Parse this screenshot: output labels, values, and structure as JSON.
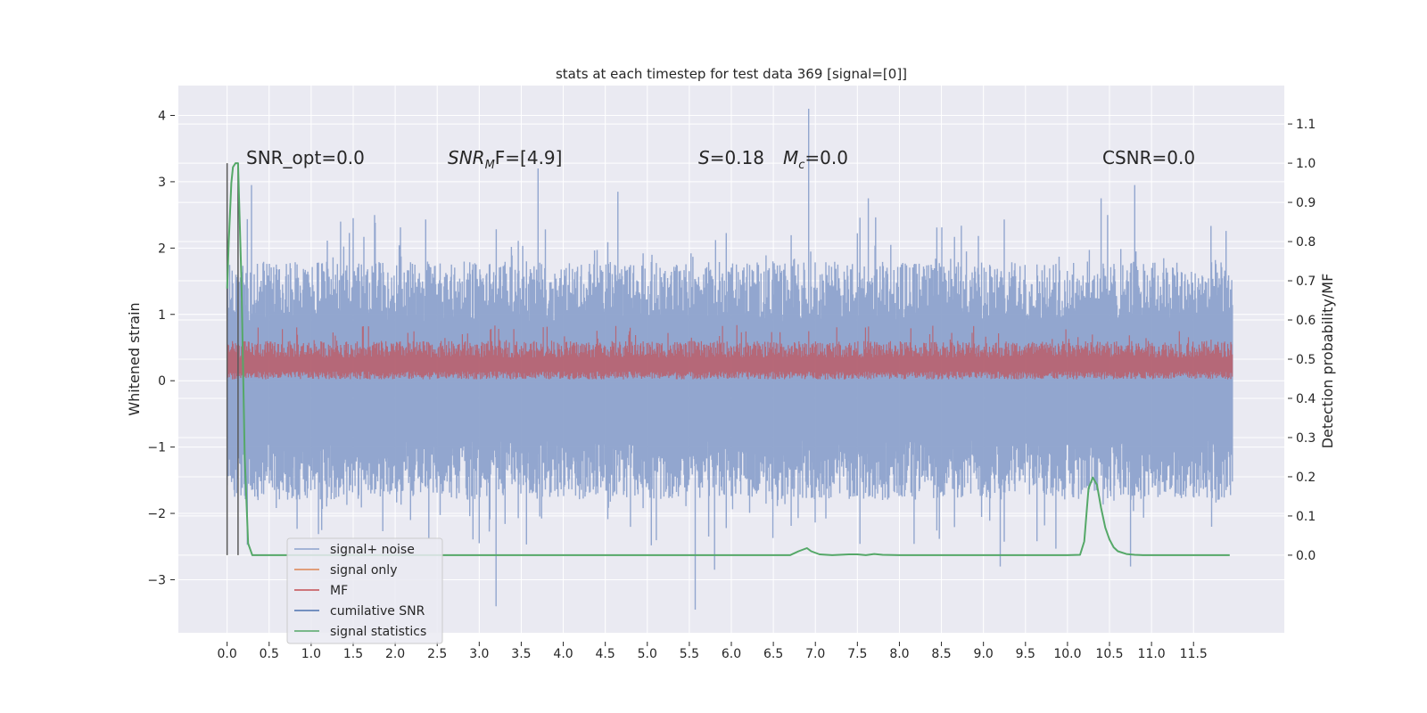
{
  "chart_data": {
    "type": "line",
    "title": "stats at each timestep for test data 369 [signal=[0]]",
    "xlabel": "",
    "ylabel": "Whitened strain",
    "y2label": "Detection probability/MF",
    "xlim": [
      -0.58,
      12.58
    ],
    "ylim": [
      -3.8,
      4.45
    ],
    "y2lim": [
      -0.198,
      1.198
    ],
    "xticks": [
      "0.0",
      "0.5",
      "1.0",
      "1.5",
      "2.0",
      "2.5",
      "3.0",
      "3.5",
      "4.0",
      "4.5",
      "5.0",
      "5.5",
      "6.0",
      "6.5",
      "7.0",
      "7.5",
      "8.0",
      "8.5",
      "9.0",
      "9.5",
      "10.0",
      "10.5",
      "11.0",
      "11.5"
    ],
    "yticks": [
      "4",
      "3",
      "2",
      "1",
      "0",
      "−1",
      "−2",
      "−3"
    ],
    "y2ticks": [
      "1.1",
      "1.0",
      "0.9",
      "0.8",
      "0.7",
      "0.6",
      "0.5",
      "0.4",
      "0.3",
      "0.2",
      "0.1",
      "0.0"
    ],
    "grid": true,
    "legend_position": "lower-left",
    "annotations": {
      "snr_opt": "SNR_opt=0.0",
      "snr_mf_main": "SNR",
      "snr_mf_sub": "M",
      "snr_mf_rest": "F=[4.9]",
      "s_stat": "S",
      "s_rest": "=0.18",
      "mc_main": "M",
      "mc_sub": "c",
      "mc_rest": "=0.0",
      "csnr": "CSNR=0.0"
    },
    "series": [
      {
        "name": "signal+ noise",
        "color": "#8da2cc",
        "description_only": "noise band",
        "band_min": -1.3,
        "band_max": 1.3,
        "spikes": [
          {
            "x": 0.29,
            "y": 2.95
          },
          {
            "x": 1.5,
            "y": 2.45
          },
          {
            "x": 3.0,
            "y": -2.45
          },
          {
            "x": 3.2,
            "y": -3.4
          },
          {
            "x": 3.7,
            "y": 3.2
          },
          {
            "x": 4.65,
            "y": 2.85
          },
          {
            "x": 5.57,
            "y": -3.45
          },
          {
            "x": 5.8,
            "y": -2.85
          },
          {
            "x": 6.92,
            "y": 4.1
          },
          {
            "x": 7.63,
            "y": 2.75
          },
          {
            "x": 9.2,
            "y": -2.8
          },
          {
            "x": 10.4,
            "y": 2.75
          },
          {
            "x": 10.75,
            "y": -2.8
          },
          {
            "x": 10.8,
            "y": 2.95
          }
        ]
      },
      {
        "name": "signal only",
        "color": "#dd8452",
        "values": []
      },
      {
        "name": "MF",
        "color": "#c44e52",
        "description_only": "MF band",
        "band_min": 0.02,
        "band_max": 0.6
      },
      {
        "name": "cumilative SNR",
        "color": "#4c72b0",
        "values": []
      },
      {
        "name": "signal statistics",
        "color": "#55a868",
        "axis": "right",
        "x": [
          0.0,
          0.02,
          0.05,
          0.07,
          0.1,
          0.13,
          0.17,
          0.21,
          0.25,
          0.3,
          0.4,
          0.6,
          1.0,
          2.0,
          3.0,
          4.0,
          5.0,
          6.0,
          6.7,
          6.8,
          6.9,
          6.95,
          7.05,
          7.2,
          7.4,
          7.5,
          7.6,
          7.7,
          7.8,
          8.0,
          8.5,
          9.0,
          9.5,
          10.0,
          10.15,
          10.2,
          10.25,
          10.3,
          10.35,
          10.4,
          10.45,
          10.5,
          10.55,
          10.6,
          10.7,
          10.8,
          10.9,
          11.0,
          11.5,
          11.93
        ],
        "values": [
          0.68,
          0.8,
          0.95,
          0.99,
          1.0,
          1.0,
          0.7,
          0.25,
          0.03,
          0.0,
          0.0,
          0.0,
          0.0,
          0.0,
          0.0,
          0.0,
          0.0,
          0.0,
          0.0,
          0.01,
          0.018,
          0.01,
          0.002,
          0.0,
          0.002,
          0.002,
          0.0,
          0.003,
          0.001,
          0.0,
          0.0,
          0.0,
          0.0,
          0.0,
          0.001,
          0.035,
          0.17,
          0.198,
          0.18,
          0.12,
          0.07,
          0.04,
          0.02,
          0.01,
          0.003,
          0.001,
          0.0,
          0.0,
          0.0,
          0.0
        ]
      }
    ],
    "vlines": [
      {
        "x": 0.0,
        "color": "#595959"
      },
      {
        "x": 0.13,
        "color": "#595959"
      }
    ]
  }
}
